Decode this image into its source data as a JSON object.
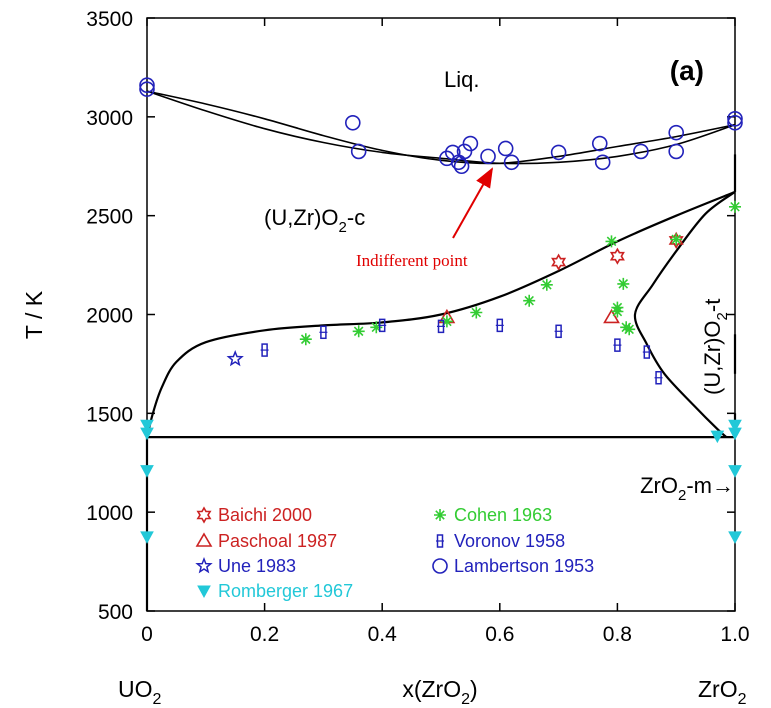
{
  "chart_data": {
    "type": "scatter",
    "panel_label": "(a)",
    "xlabel": "x(ZrO",
    "xlabel_sub": "2",
    "xlabel_end": ")",
    "ylabel": "T / K",
    "xlim": [
      0,
      1
    ],
    "ylim": [
      500,
      3500
    ],
    "xticks": [
      "0",
      "0.2",
      "0.4",
      "0.6",
      "0.8",
      "1.0"
    ],
    "yticks": [
      "500",
      "1000",
      "1500",
      "2000",
      "2500",
      "3000",
      "3500"
    ],
    "end_labels": {
      "left": {
        "text": "UO",
        "sub": "2"
      },
      "right": {
        "text": "ZrO",
        "sub": "2"
      }
    },
    "regions": {
      "liquid": "Liq.",
      "cubic": {
        "pre": "(U,Zr)O",
        "sub": "2",
        "post": "-c"
      },
      "tetragonal": {
        "pre": "(U,Zr)O",
        "sub": "2",
        "post": "-t"
      },
      "monoclinic": {
        "pre": "ZrO",
        "sub": "2",
        "post": "-m→"
      }
    },
    "annotation": {
      "text": "Indifferent point",
      "x": 0.595,
      "y": 2770
    },
    "series": [
      {
        "name": "Baichi 2000",
        "marker": "star6",
        "color": "#cc2222",
        "points": [
          [
            0.7,
            2265
          ],
          [
            0.8,
            2295
          ],
          [
            0.9,
            2375
          ]
        ]
      },
      {
        "name": "Paschoal 1987",
        "marker": "triangle",
        "color": "#cc2222",
        "points": [
          [
            0.51,
            1985
          ],
          [
            0.79,
            1985
          ]
        ]
      },
      {
        "name": "Une 1983",
        "marker": "star5",
        "color": "#2222bb",
        "points": [
          [
            0.15,
            1775
          ]
        ]
      },
      {
        "name": "Romberger 1967",
        "marker": "tri-down",
        "color": "#22c8d8",
        "points": [
          [
            0,
            1440
          ],
          [
            0,
            1400
          ],
          [
            0,
            1210
          ],
          [
            0,
            875
          ],
          [
            1.0,
            1440
          ],
          [
            1.0,
            1400
          ],
          [
            1.0,
            1210
          ],
          [
            1.0,
            875
          ],
          [
            0.97,
            1385
          ]
        ]
      },
      {
        "name": "Cohen 1963",
        "marker": "asterisk",
        "color": "#33cc33",
        "points": [
          [
            0.27,
            1875
          ],
          [
            0.36,
            1915
          ],
          [
            0.39,
            1935
          ],
          [
            0.51,
            1965
          ],
          [
            0.56,
            2010
          ],
          [
            0.65,
            2070
          ],
          [
            0.68,
            2150
          ],
          [
            0.79,
            2370
          ],
          [
            0.8,
            2035
          ],
          [
            0.81,
            2155
          ],
          [
            0.815,
            1935
          ],
          [
            0.82,
            1925
          ],
          [
            0.9,
            2380
          ],
          [
            1.0,
            2545
          ],
          [
            0.8,
            2015
          ]
        ]
      },
      {
        "name": "Voronov 1958",
        "marker": "bar",
        "color": "#2222bb",
        "points": [
          [
            0.2,
            1820
          ],
          [
            0.3,
            1910
          ],
          [
            0.4,
            1945
          ],
          [
            0.5,
            1940
          ],
          [
            0.6,
            1945
          ],
          [
            0.7,
            1915
          ],
          [
            0.8,
            1845
          ],
          [
            0.85,
            1810
          ],
          [
            0.87,
            1680
          ]
        ]
      },
      {
        "name": "Lambertson 1953",
        "marker": "circle",
        "color": "#2222bb",
        "points": [
          [
            0,
            3160
          ],
          [
            0,
            3140
          ],
          [
            0.35,
            2970
          ],
          [
            0.36,
            2825
          ],
          [
            0.51,
            2790
          ],
          [
            0.52,
            2820
          ],
          [
            0.53,
            2770
          ],
          [
            0.535,
            2750
          ],
          [
            0.54,
            2825
          ],
          [
            0.55,
            2865
          ],
          [
            0.58,
            2800
          ],
          [
            0.61,
            2840
          ],
          [
            0.62,
            2770
          ],
          [
            0.7,
            2820
          ],
          [
            0.77,
            2865
          ],
          [
            0.775,
            2770
          ],
          [
            0.84,
            2825
          ],
          [
            0.9,
            2920
          ],
          [
            0.9,
            2825
          ],
          [
            1.0,
            2990
          ],
          [
            1.0,
            2970
          ]
        ]
      }
    ],
    "lines": [
      {
        "name": "liquidus",
        "points": [
          [
            0,
            3130
          ],
          [
            0.1,
            3030
          ],
          [
            0.2,
            2940
          ],
          [
            0.3,
            2870
          ],
          [
            0.4,
            2820
          ],
          [
            0.5,
            2790
          ],
          [
            0.6,
            2765
          ],
          [
            0.7,
            2770
          ],
          [
            0.8,
            2800
          ],
          [
            0.9,
            2860
          ],
          [
            1.0,
            2960
          ]
        ]
      },
      {
        "name": "solidus",
        "points": [
          [
            0,
            3130
          ],
          [
            0.1,
            3065
          ],
          [
            0.2,
            2990
          ],
          [
            0.3,
            2905
          ],
          [
            0.4,
            2830
          ],
          [
            0.5,
            2780
          ],
          [
            0.6,
            2765
          ],
          [
            0.7,
            2800
          ],
          [
            0.8,
            2850
          ],
          [
            0.9,
            2900
          ],
          [
            1.0,
            2960
          ]
        ]
      },
      {
        "name": "cubic-boundary",
        "points": [
          [
            0,
            1380
          ],
          [
            0.01,
            1500
          ],
          [
            0.025,
            1630
          ],
          [
            0.05,
            1760
          ],
          [
            0.1,
            1860
          ],
          [
            0.2,
            1920
          ],
          [
            0.3,
            1945
          ],
          [
            0.4,
            1960
          ],
          [
            0.5,
            2000
          ],
          [
            0.6,
            2090
          ],
          [
            0.7,
            2220
          ],
          [
            0.8,
            2370
          ],
          [
            0.9,
            2500
          ],
          [
            1.0,
            2620
          ]
        ]
      },
      {
        "name": "tetragonal-boundary",
        "points": [
          [
            1.0,
            2620
          ],
          [
            0.95,
            2510
          ],
          [
            0.9,
            2320
          ],
          [
            0.86,
            2150
          ],
          [
            0.83,
            2000
          ],
          [
            0.85,
            1850
          ],
          [
            0.88,
            1700
          ],
          [
            0.93,
            1540
          ],
          [
            0.97,
            1420
          ],
          [
            0.985,
            1380
          ]
        ]
      },
      {
        "name": "eutectoid",
        "points": [
          [
            0,
            1380
          ],
          [
            1.0,
            1380
          ]
        ]
      },
      {
        "name": "left-edge",
        "points": [
          [
            0,
            500
          ],
          [
            0,
            1380
          ]
        ]
      },
      {
        "name": "right-edge-upper",
        "points": [
          [
            1.0,
            2620
          ],
          [
            1.0,
            2810
          ]
        ]
      },
      {
        "name": "right-edge-lower",
        "points": [
          [
            1.0,
            1380
          ],
          [
            1.0,
            1500
          ]
        ]
      },
      {
        "name": "right-edge-mid",
        "points": [
          [
            1.0,
            1700
          ],
          [
            1.0,
            1900
          ]
        ]
      }
    ]
  }
}
